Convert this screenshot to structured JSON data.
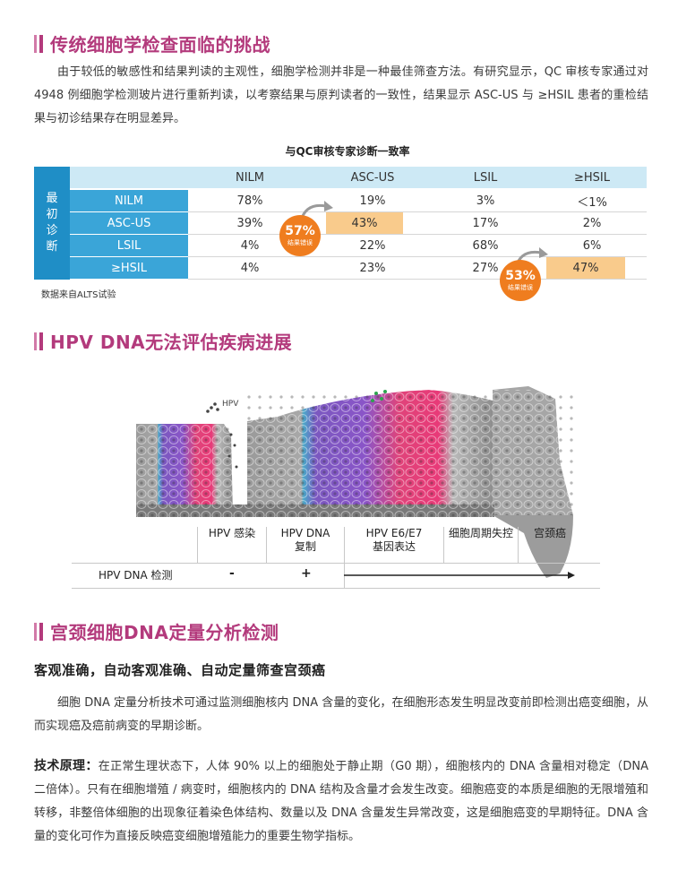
{
  "section1": {
    "title": "传统细胞学检查面临的挑战",
    "paragraph": "由于较低的敏感性和结果判读的主观性，细胞学检测并非是一种最佳筛查方法。有研究显示，QC 审核专家通过对 4948 例细胞学检测玻片进行重新判读，以考察结果与原判读者的一致性，结果显示 ASC-US 与 ≥HSIL 患者的重检结果与初诊结果存在明显差异。"
  },
  "table": {
    "title": "与QC审核专家诊断一致率",
    "side_label": [
      "最",
      "初",
      "诊",
      "断"
    ],
    "columns": [
      "NILM",
      "ASC-US",
      "LSIL",
      "≥HSIL"
    ],
    "rows": [
      {
        "label": "NILM",
        "values": [
          "78%",
          "19%",
          "3%",
          "＜1%"
        ]
      },
      {
        "label": "ASC-US",
        "values": [
          "39%",
          "43%",
          "17%",
          "2%"
        ]
      },
      {
        "label": "LSIL",
        "values": [
          "4%",
          "22%",
          "68%",
          "6%"
        ]
      },
      {
        "label": "≥HSIL",
        "values": [
          "4%",
          "23%",
          "27%",
          "47%"
        ]
      }
    ],
    "badges": [
      {
        "pct": "57%",
        "label": "结果错误"
      },
      {
        "pct": "53%",
        "label": "结果错误"
      }
    ],
    "source": "数据来自ALTS试验",
    "highlight_color": "#f9cb8c",
    "badge_color": "#ef7d1f"
  },
  "section2": {
    "title": "HPV DNA无法评估疾病进展",
    "hpv_label": "HPV",
    "stages": [
      "HPV 感染",
      "HPV DNA\n复制",
      "HPV E6/E7\n基因表达",
      "细胞周期失控",
      "宫颈癌"
    ],
    "detect_label": "HPV DNA 检测",
    "detect_values": [
      "-",
      "+"
    ]
  },
  "section3": {
    "title": "宫颈细胞DNA定量分析检测",
    "subheading": "客观准确，自动客观准确、自动定量筛查宫颈癌",
    "paragraph1": "细胞 DNA 定量分析技术可通过监测细胞核内 DNA 含量的变化，在细胞形态发生明显改变前即检测出癌变细胞，从而实现癌及癌前病变的早期诊断。",
    "principle_label": "技术原理：",
    "paragraph2": "在正常生理状态下，人体 90% 以上的细胞处于静止期（G0 期），细胞核内的 DNA 含量相对稳定（DNA 二倍体）。只有在细胞增殖 / 病变时，细胞核内的 DNA 结构及含量才会发生改变。细胞癌变的本质是细胞的无限增殖和转移，非整倍体细胞的出现象征着染色体结构、数量以及 DNA 含量发生异常改变，这是细胞癌变的早期特征。DNA 含量的变化可作为直接反映癌变细胞增殖能力的重要生物学指标。"
  },
  "colors": {
    "accent": "#b33a7c",
    "table_blue": "#1f8ec6",
    "table_light_blue": "#cde9f5"
  }
}
